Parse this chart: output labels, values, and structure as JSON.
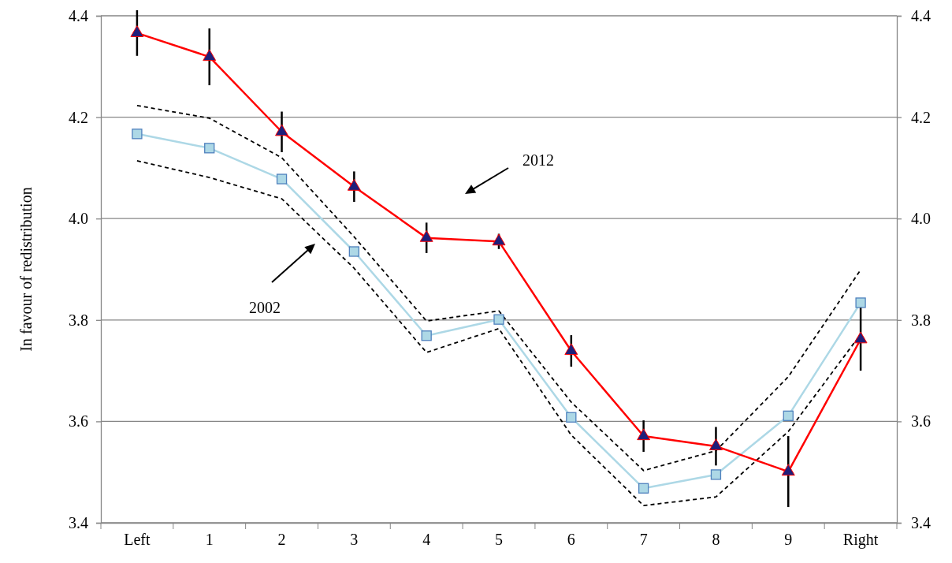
{
  "chart_data": {
    "type": "line",
    "ylabel": "In favour of redistribution",
    "categories": [
      "Left",
      "1",
      "2",
      "3",
      "4",
      "5",
      "6",
      "7",
      "8",
      "9",
      "Right"
    ],
    "series": [
      {
        "color": "#000000",
        "line_style": "dashed",
        "marker": "none",
        "values": [
          4.223,
          4.198,
          4.12,
          3.964,
          3.798,
          3.818,
          3.638,
          3.503,
          3.542,
          3.688,
          3.899
        ]
      },
      {
        "color": "#000000",
        "line_style": "dashed",
        "marker": "none",
        "values": [
          4.114,
          4.081,
          4.039,
          3.902,
          3.736,
          3.783,
          3.573,
          3.434,
          3.451,
          3.58,
          3.772
        ]
      },
      {
        "color": "#add8e6",
        "marker": "square",
        "values": [
          4.167,
          4.139,
          4.078,
          3.935,
          3.769,
          3.801,
          3.608,
          3.468,
          3.495,
          3.611,
          3.834
        ]
      },
      {
        "color": "#ff0000",
        "marker": "triangle",
        "values": [
          4.366,
          4.319,
          4.171,
          4.063,
          3.962,
          3.955,
          3.739,
          3.571,
          3.551,
          3.501,
          3.762
        ],
        "errors": [
          0.045,
          0.056,
          0.04,
          0.03,
          0.03,
          0.015,
          0.031,
          0.031,
          0.038,
          0.07,
          0.062
        ]
      }
    ],
    "ylim": [
      3.4,
      4.4
    ],
    "yticks": [
      {
        "value": 3.4,
        "label": "3.4"
      },
      {
        "value": 3.6,
        "label": "3.6"
      },
      {
        "value": 3.8,
        "label": "3.8"
      },
      {
        "value": 4.0,
        "label": "4.0"
      },
      {
        "value": 4.2,
        "label": "4.2"
      },
      {
        "value": 4.4,
        "label": "4.4"
      }
    ],
    "y2lim": [
      3.4,
      4.4
    ],
    "y2ticks": [
      {
        "value": 3.4,
        "label": "3.4"
      },
      {
        "value": 3.6,
        "label": "3.6"
      },
      {
        "value": 3.8,
        "label": "3.8"
      },
      {
        "value": 4.0,
        "label": "4.0"
      },
      {
        "value": 4.2,
        "label": "4.2"
      },
      {
        "value": 4.4,
        "label": "4.4"
      }
    ],
    "grid": "y",
    "annotations": [
      "2012",
      "2002"
    ]
  }
}
